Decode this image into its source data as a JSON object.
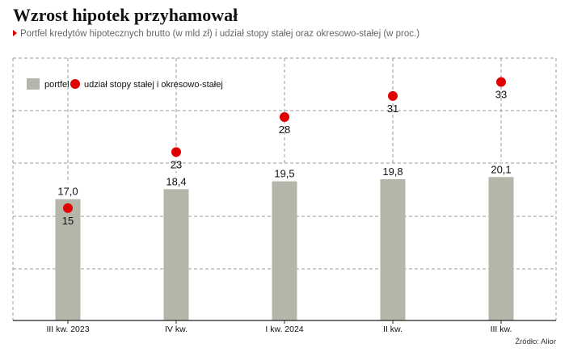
{
  "title": "Wzrost hipotek przyhamował",
  "subtitle": "Portfel kredytów hipotecznych brutto (w mld zł) i udział stopy stałej oraz okresowo-stałej (w proc.)",
  "source": "Źródło: Alior",
  "colors": {
    "bar": "#b6b5a9",
    "dot": "#e10000",
    "grid": "#9a9a9a",
    "subtitle_marker": "#d40000"
  },
  "chart_data": {
    "type": "bar",
    "categories": [
      "III kw. 2023",
      "IV kw.",
      "I kw. 2024",
      "II kw.",
      "III kw."
    ],
    "series": [
      {
        "name": "portfel",
        "type": "bar",
        "values": [
          17.0,
          18.4,
          19.5,
          19.8,
          20.1
        ],
        "labels": [
          "17,0",
          "18,4",
          "19,5",
          "19,8",
          "20,1"
        ]
      },
      {
        "name": "udział stopy stałej i okresowo-stałej",
        "type": "scatter",
        "values": [
          15,
          23,
          28,
          31,
          33
        ],
        "labels": [
          "15",
          "23",
          "28",
          "31",
          "33"
        ]
      }
    ],
    "bar_axis_range": [
      0,
      30
    ],
    "dot_axis_range": [
      0,
      37
    ],
    "grid": "dashed horizontal",
    "legend_position": "top-left"
  }
}
